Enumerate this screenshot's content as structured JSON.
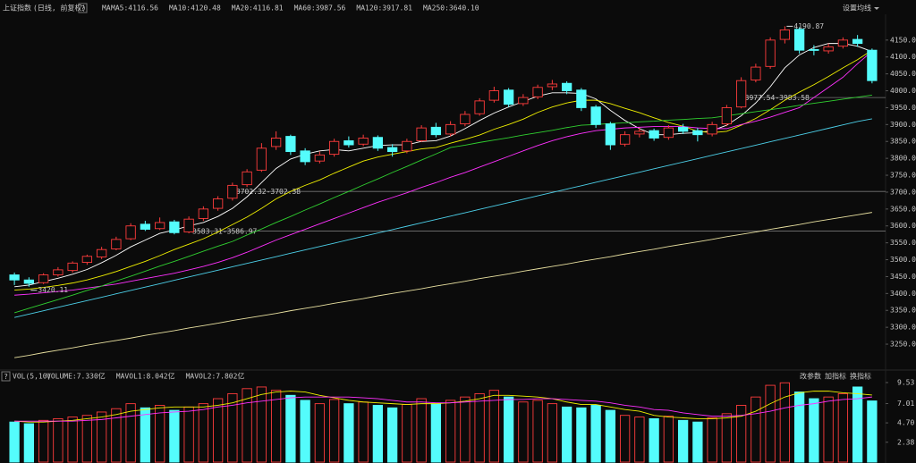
{
  "chart_data": [
    {
      "type": "candlestick",
      "title": "上证指数",
      "subtitle": "(日线, 前复权)",
      "help": "?",
      "ma_label": "MA",
      "menu": "设置均线",
      "up_color": "#ff3c3c",
      "down_color": "#54fcfc",
      "ylim": [
        3184,
        4221
      ],
      "yticks": [
        {
          "value": 3250,
          "label": "3250.00"
        },
        {
          "value": 3300,
          "label": "3300.00"
        },
        {
          "value": 3350,
          "label": "3350.00"
        },
        {
          "value": 3400,
          "label": "3400.00"
        },
        {
          "value": 3450,
          "label": "3450.00"
        },
        {
          "value": 3500,
          "label": "3500.00"
        },
        {
          "value": 3550,
          "label": "3550.00"
        },
        {
          "value": 3600,
          "label": "3600.00"
        },
        {
          "value": 3650,
          "label": "3650.00"
        },
        {
          "value": 3700,
          "label": "3700.00"
        },
        {
          "value": 3750,
          "label": "3750.00"
        },
        {
          "value": 3800,
          "label": "3800.00"
        },
        {
          "value": 3850,
          "label": "3850.00"
        },
        {
          "value": 3900,
          "label": "3900.00"
        },
        {
          "value": 3950,
          "label": "3950.00"
        },
        {
          "value": 4000,
          "label": "4000.00"
        },
        {
          "value": 4050,
          "label": "4050.00"
        },
        {
          "value": 4100,
          "label": "4100.00"
        },
        {
          "value": 4150,
          "label": "4150.00"
        }
      ],
      "high_label": "4190.87",
      "low_label": "3420.11",
      "levels": [
        {
          "label": "3583.31-3586.97",
          "value": 3585
        },
        {
          "label": "3702.32-3702.38",
          "value": 3702
        },
        {
          "label": "3977.54-3983.58",
          "value": 3980
        }
      ],
      "candles": [
        [
          3455,
          3462,
          3425,
          3440
        ],
        [
          3440,
          3448,
          3420.11,
          3430
        ],
        [
          3432,
          3460,
          3428,
          3455
        ],
        [
          3455,
          3478,
          3450,
          3470
        ],
        [
          3468,
          3495,
          3462,
          3490
        ],
        [
          3492,
          3515,
          3485,
          3510
        ],
        [
          3508,
          3538,
          3502,
          3530
        ],
        [
          3532,
          3568,
          3528,
          3560
        ],
        [
          3562,
          3608,
          3558,
          3600
        ],
        [
          3605,
          3615,
          3585,
          3590
        ],
        [
          3592,
          3625,
          3588,
          3610
        ],
        [
          3612,
          3618,
          3575,
          3580
        ],
        [
          3582,
          3628,
          3578,
          3620
        ],
        [
          3622,
          3658,
          3615,
          3650
        ],
        [
          3652,
          3688,
          3645,
          3680
        ],
        [
          3682,
          3728,
          3675,
          3720
        ],
        [
          3722,
          3768,
          3715,
          3760
        ],
        [
          3765,
          3845,
          3760,
          3830
        ],
        [
          3835,
          3880,
          3825,
          3860
        ],
        [
          3865,
          3870,
          3810,
          3820
        ],
        [
          3822,
          3830,
          3780,
          3790
        ],
        [
          3792,
          3820,
          3785,
          3810
        ],
        [
          3812,
          3858,
          3805,
          3850
        ],
        [
          3852,
          3865,
          3832,
          3840
        ],
        [
          3842,
          3870,
          3836,
          3860
        ],
        [
          3862,
          3868,
          3822,
          3830
        ],
        [
          3832,
          3842,
          3805,
          3820
        ],
        [
          3822,
          3858,
          3815,
          3850
        ],
        [
          3852,
          3898,
          3848,
          3890
        ],
        [
          3892,
          3905,
          3862,
          3870
        ],
        [
          3872,
          3910,
          3865,
          3900
        ],
        [
          3902,
          3940,
          3895,
          3930
        ],
        [
          3932,
          3978,
          3926,
          3970
        ],
        [
          3972,
          4012,
          3965,
          4000
        ],
        [
          4002,
          4008,
          3952,
          3960
        ],
        [
          3962,
          3990,
          3955,
          3980
        ],
        [
          3982,
          4018,
          3975,
          4010
        ],
        [
          4012,
          4032,
          4002,
          4020
        ],
        [
          4022,
          4028,
          3990,
          4000
        ],
        [
          4002,
          4008,
          3940,
          3950
        ],
        [
          3952,
          3958,
          3890,
          3900
        ],
        [
          3902,
          3908,
          3825,
          3840
        ],
        [
          3842,
          3880,
          3835,
          3870
        ],
        [
          3872,
          3890,
          3862,
          3880
        ],
        [
          3882,
          3888,
          3852,
          3860
        ],
        [
          3862,
          3898,
          3855,
          3890
        ],
        [
          3892,
          3902,
          3872,
          3880
        ],
        [
          3882,
          3890,
          3850,
          3870
        ],
        [
          3872,
          3908,
          3865,
          3900
        ],
        [
          3902,
          3958,
          3895,
          3950
        ],
        [
          3952,
          4040,
          3948,
          4030
        ],
        [
          4032,
          4080,
          4025,
          4070
        ],
        [
          4072,
          4158,
          4065,
          4150
        ],
        [
          4152,
          4190.87,
          4140,
          4180
        ],
        [
          4182,
          4188,
          4110,
          4120
        ],
        [
          4122,
          4135,
          4105,
          4120
        ],
        [
          4118,
          4140,
          4110,
          4130
        ],
        [
          4132,
          4158,
          4125,
          4150
        ],
        [
          4152,
          4165,
          4130,
          4140
        ],
        [
          4120,
          4125,
          4022,
          4030
        ]
      ],
      "series": [
        {
          "name": "MA5:4116.56",
          "color": "#ffffff",
          "values": [
            3420,
            3425,
            3435,
            3445,
            3457,
            3471,
            3491,
            3513,
            3538,
            3558,
            3578,
            3588,
            3600,
            3610,
            3628,
            3652,
            3686,
            3728,
            3770,
            3798,
            3812,
            3822,
            3826,
            3822,
            3830,
            3838,
            3840,
            3840,
            3850,
            3852,
            3866,
            3888,
            3912,
            3934,
            3952,
            3968,
            3984,
            3994,
            3994,
            3992,
            3976,
            3942,
            3912,
            3888,
            3870,
            3870,
            3874,
            3876,
            3882,
            3898,
            3926,
            3964,
            4012,
            4068,
            4106,
            4128,
            4140,
            4140,
            4132,
            4116
          ]
        },
        {
          "name": "MA10:4120.48",
          "color": "#f0f000",
          "values": [
            3410,
            3413,
            3418,
            3424,
            3431,
            3440,
            3452,
            3465,
            3480,
            3495,
            3512,
            3530,
            3546,
            3562,
            3582,
            3604,
            3626,
            3652,
            3680,
            3702,
            3720,
            3736,
            3756,
            3774,
            3792,
            3804,
            3812,
            3820,
            3828,
            3832,
            3845,
            3856,
            3869,
            3886,
            3900,
            3916,
            3936,
            3952,
            3964,
            3972,
            3972,
            3962,
            3948,
            3935,
            3920,
            3906,
            3895,
            3880,
            3876,
            3880,
            3898,
            3918,
            3944,
            3972,
            3996,
            4018,
            4042,
            4068,
            4092,
            4120
          ]
        },
        {
          "name": "MA20:4116.81",
          "color": "#ff30ff",
          "values": [
            3395,
            3398,
            3402,
            3406,
            3410,
            3416,
            3422,
            3428,
            3436,
            3444,
            3452,
            3460,
            3470,
            3480,
            3492,
            3506,
            3522,
            3540,
            3558,
            3574,
            3590,
            3606,
            3622,
            3638,
            3654,
            3670,
            3684,
            3698,
            3714,
            3728,
            3744,
            3758,
            3774,
            3790,
            3806,
            3822,
            3838,
            3852,
            3864,
            3874,
            3882,
            3886,
            3890,
            3892,
            3894,
            3894,
            3894,
            3890,
            3888,
            3888,
            3900,
            3910,
            3922,
            3936,
            3950,
            3980,
            4010,
            4040,
            4080,
            4117
          ]
        },
        {
          "name": "MA60:3987.56",
          "color": "#30d030",
          "values": [
            3343,
            3356,
            3369,
            3382,
            3395,
            3409,
            3422,
            3437,
            3451,
            3466,
            3481,
            3495,
            3510,
            3525,
            3540,
            3554,
            3573,
            3591,
            3610,
            3628,
            3647,
            3665,
            3684,
            3702,
            3721,
            3739,
            3758,
            3776,
            3795,
            3813,
            3832,
            3839,
            3847,
            3854,
            3861,
            3869,
            3876,
            3883,
            3891,
            3898,
            3900,
            3903,
            3905,
            3908,
            3910,
            3913,
            3915,
            3918,
            3920,
            3926,
            3932,
            3938,
            3944,
            3950,
            3957,
            3963,
            3969,
            3975,
            3981,
            3987
          ]
        },
        {
          "name": "MA120:3917.81",
          "color": "#4ccfe8",
          "values": [
            3329,
            3339,
            3349,
            3359,
            3369,
            3379,
            3389,
            3399,
            3409,
            3419,
            3429,
            3439,
            3449,
            3459,
            3469,
            3479,
            3489,
            3499,
            3509,
            3519,
            3529,
            3539,
            3549,
            3559,
            3569,
            3579,
            3589,
            3599,
            3609,
            3619,
            3629,
            3639,
            3649,
            3659,
            3669,
            3679,
            3689,
            3699,
            3709,
            3719,
            3729,
            3739,
            3749,
            3759,
            3769,
            3779,
            3789,
            3799,
            3809,
            3819,
            3829,
            3839,
            3849,
            3859,
            3869,
            3879,
            3889,
            3899,
            3909,
            3917
          ]
        },
        {
          "name": "MA250:3640.10",
          "color": "#e8e0a0",
          "values": [
            3210,
            3217,
            3225,
            3232,
            3239,
            3247,
            3254,
            3261,
            3268,
            3276,
            3283,
            3290,
            3298,
            3305,
            3312,
            3320,
            3327,
            3334,
            3341,
            3349,
            3356,
            3363,
            3371,
            3378,
            3385,
            3393,
            3400,
            3407,
            3414,
            3422,
            3429,
            3436,
            3444,
            3451,
            3458,
            3466,
            3473,
            3480,
            3487,
            3495,
            3502,
            3509,
            3517,
            3524,
            3531,
            3539,
            3546,
            3553,
            3560,
            3568,
            3575,
            3582,
            3590,
            3597,
            3604,
            3612,
            3619,
            3626,
            3633,
            3640
          ]
        }
      ]
    },
    {
      "type": "bar",
      "title": "VOL(5,10)",
      "help": "?",
      "volume_name": "VOLUME:7.330亿",
      "buttons": [
        "改参数",
        "加指标",
        "换指标"
      ],
      "ylim": [
        0,
        10.6
      ],
      "yticks": [
        2.38,
        {
          "value": 4.7,
          "label": "4.70"
        },
        7.01,
        9.53
      ],
      "values": [
        4.8,
        4.6,
        5.0,
        5.2,
        5.4,
        5.6,
        6.0,
        6.4,
        7.0,
        6.5,
        6.8,
        6.2,
        6.6,
        7.0,
        7.6,
        8.2,
        8.8,
        9.0,
        8.6,
        8.0,
        7.4,
        7.0,
        7.5,
        7.0,
        7.2,
        6.8,
        6.5,
        6.9,
        7.6,
        7.0,
        7.4,
        7.8,
        8.2,
        8.6,
        7.8,
        7.2,
        7.4,
        7.0,
        6.6,
        6.5,
        6.8,
        6.2,
        5.6,
        5.4,
        5.2,
        5.5,
        5.0,
        4.8,
        5.3,
        5.8,
        6.8,
        7.8,
        9.2,
        9.5,
        8.4,
        7.6,
        7.8,
        8.2,
        9.0,
        7.33
      ],
      "series": [
        {
          "name": "MAVOL1:8.042亿",
          "color": "#f0f000",
          "values": [
            4.9,
            4.8,
            4.8,
            4.9,
            5.0,
            5.2,
            5.4,
            5.7,
            6.1,
            6.3,
            6.5,
            6.6,
            6.6,
            6.6,
            6.8,
            7.1,
            7.6,
            8.1,
            8.4,
            8.5,
            8.4,
            8.0,
            7.7,
            7.4,
            7.2,
            7.1,
            7.0,
            6.9,
            7.0,
            7.0,
            7.1,
            7.3,
            7.6,
            8.0,
            8.0,
            7.9,
            7.8,
            7.6,
            7.2,
            6.9,
            6.9,
            6.6,
            6.3,
            6.1,
            5.6,
            5.4,
            5.3,
            5.2,
            5.2,
            5.3,
            5.5,
            6.1,
            7.0,
            7.8,
            8.3,
            8.5,
            8.5,
            8.3,
            8.2,
            8.042
          ]
        },
        {
          "name": "MAVOL2:7.802亿",
          "color": "#ff30ff",
          "values": [
            4.9,
            4.9,
            4.9,
            4.9,
            4.9,
            5.0,
            5.1,
            5.3,
            5.5,
            5.7,
            5.9,
            6.0,
            6.1,
            6.3,
            6.6,
            6.8,
            7.1,
            7.3,
            7.5,
            7.7,
            7.8,
            7.8,
            7.8,
            7.8,
            7.7,
            7.6,
            7.4,
            7.2,
            7.2,
            7.1,
            7.1,
            7.2,
            7.3,
            7.4,
            7.5,
            7.5,
            7.6,
            7.6,
            7.5,
            7.4,
            7.3,
            7.1,
            6.8,
            6.6,
            6.3,
            6.2,
            5.9,
            5.7,
            5.5,
            5.5,
            5.6,
            5.8,
            6.1,
            6.5,
            6.8,
            7.0,
            7.3,
            7.5,
            7.6,
            7.802
          ]
        }
      ]
    }
  ]
}
